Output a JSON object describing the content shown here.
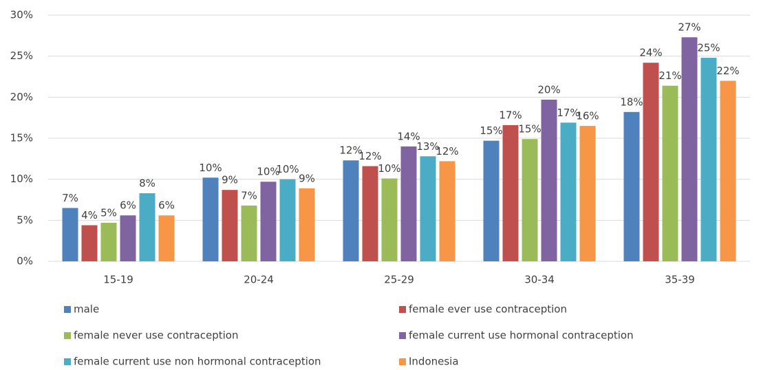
{
  "chart_data": {
    "type": "bar",
    "categories": [
      "15-19",
      "20-24",
      "25-29",
      "30-34",
      "35-39"
    ],
    "series": [
      {
        "name": "male",
        "color": "#4f81bd",
        "values": [
          6.5,
          10.2,
          12.3,
          14.7,
          18.2
        ],
        "value_labels": [
          "7%",
          "10%",
          "12%",
          "15%",
          "18%"
        ]
      },
      {
        "name": "female ever use contraception",
        "color": "#c0504d",
        "values": [
          4.4,
          8.7,
          11.6,
          16.6,
          24.2
        ],
        "value_labels": [
          "4%",
          "9%",
          "12%",
          "17%",
          "24%"
        ]
      },
      {
        "name": "female never use contraception",
        "color": "#9bbb59",
        "values": [
          4.7,
          6.8,
          10.1,
          14.9,
          21.4
        ],
        "value_labels": [
          "5%",
          "7%",
          "10%",
          "15%",
          "21%"
        ]
      },
      {
        "name": "female current  use hormonal contraception",
        "color": "#8064a2",
        "values": [
          5.6,
          9.7,
          14.0,
          19.7,
          27.3
        ],
        "value_labels": [
          "6%",
          "10%",
          "14%",
          "20%",
          "27%"
        ]
      },
      {
        "name": "female current  use non hormonal contraception",
        "color": "#4bacc6",
        "values": [
          8.3,
          10.0,
          12.8,
          16.9,
          24.8
        ],
        "value_labels": [
          "8%",
          "10%",
          "13%",
          "17%",
          "25%"
        ]
      },
      {
        "name": "Indonesia",
        "color": "#f79646",
        "values": [
          5.6,
          8.9,
          12.2,
          16.5,
          22.0
        ],
        "value_labels": [
          "6%",
          "9%",
          "12%",
          "16%",
          "22%"
        ]
      }
    ],
    "ylim": [
      0,
      30
    ],
    "yticks": [
      {
        "value": 0,
        "label": "0%"
      },
      {
        "value": 5,
        "label": "5%"
      },
      {
        "value": 10,
        "label": "10%"
      },
      {
        "value": 15,
        "label": "15%"
      },
      {
        "value": 20,
        "label": "20%"
      },
      {
        "value": 25,
        "label": "25%"
      },
      {
        "value": 30,
        "label": "30%"
      }
    ],
    "grid": true,
    "legend": "bottom"
  }
}
